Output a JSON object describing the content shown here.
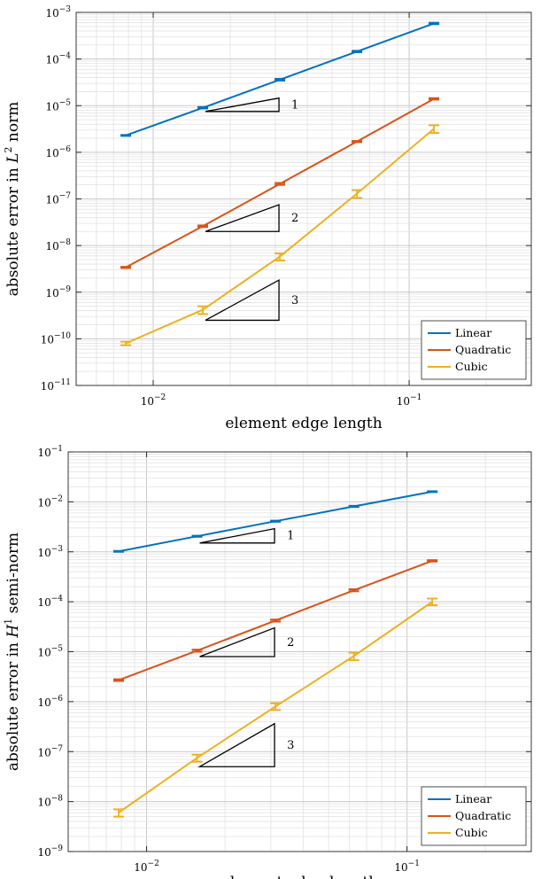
{
  "chart_data": [
    {
      "type": "line",
      "xscale": "log",
      "yscale": "log",
      "xlim": [
        0.005,
        0.3
      ],
      "ylim": [
        1e-11,
        0.001
      ],
      "xlabel": "element edge length",
      "ylabel_prefix": "absolute error in ",
      "ylabel_var": "L",
      "ylabel_sup": "2",
      "ylabel_suffix": " norm",
      "xticks": [
        0.01,
        0.1
      ],
      "xtick_labels": [
        {
          "base": "10",
          "exp": "−2"
        },
        {
          "base": "10",
          "exp": "−1"
        }
      ],
      "yticks": [
        1e-11,
        1e-10,
        1e-09,
        1e-08,
        1e-07,
        1e-06,
        1e-05,
        0.0001,
        0.001
      ],
      "ytick_labels": [
        {
          "base": "10",
          "exp": "−11"
        },
        {
          "base": "10",
          "exp": "−10"
        },
        {
          "base": "10",
          "exp": "−9"
        },
        {
          "base": "10",
          "exp": "−8"
        },
        {
          "base": "10",
          "exp": "−7"
        },
        {
          "base": "10",
          "exp": "−6"
        },
        {
          "base": "10",
          "exp": "−5"
        },
        {
          "base": "10",
          "exp": "−4"
        },
        {
          "base": "10",
          "exp": "−3"
        }
      ],
      "grid": true,
      "legend_position": "bottom-right",
      "series": [
        {
          "name": "Linear",
          "color": "#0072BD",
          "x": [
            0.0078125,
            0.015625,
            0.03125,
            0.0625,
            0.125
          ],
          "y": [
            2.3e-06,
            9e-06,
            3.6e-05,
            0.000145,
            0.00058
          ],
          "err_lo": [
            2.25e-06,
            8.7e-06,
            3.45e-05,
            0.00014,
            0.00056
          ],
          "err_hi": [
            2.35e-06,
            9.3e-06,
            3.75e-05,
            0.00015,
            0.0006
          ]
        },
        {
          "name": "Quadratic",
          "color": "#D95319",
          "x": [
            0.0078125,
            0.015625,
            0.03125,
            0.0625,
            0.125
          ],
          "y": [
            3.4e-09,
            2.6e-08,
            2.1e-07,
            1.7e-06,
            1.4e-05
          ],
          "err_lo": [
            3.3e-09,
            2.5e-08,
            2e-07,
            1.65e-06,
            1.35e-05
          ],
          "err_hi": [
            3.5e-09,
            2.7e-08,
            2.2e-07,
            1.75e-06,
            1.45e-05
          ]
        },
        {
          "name": "Cubic",
          "color": "#EDB120",
          "x": [
            0.0078125,
            0.015625,
            0.03125,
            0.0625,
            0.125
          ],
          "y": [
            8e-11,
            4.2e-10,
            5.8e-09,
            1.3e-07,
            3.2e-06
          ],
          "err_lo": [
            7.3e-11,
            3.4e-10,
            4.8e-09,
            1.05e-07,
            2.6e-06
          ],
          "err_hi": [
            8.7e-11,
            5e-10,
            6.8e-09,
            1.55e-07,
            3.8e-06
          ]
        }
      ],
      "slope_triangles": [
        {
          "label": "1",
          "x1": 0.016,
          "x2": 0.031,
          "y_base": 7.5e-06,
          "slope": 1
        },
        {
          "label": "2",
          "x1": 0.016,
          "x2": 0.031,
          "y_base": 2e-08,
          "slope": 2
        },
        {
          "label": "3",
          "x1": 0.016,
          "x2": 0.031,
          "y_base": 2.5e-10,
          "slope": 3
        }
      ]
    },
    {
      "type": "line",
      "xscale": "log",
      "yscale": "log",
      "xlim": [
        0.005,
        0.3
      ],
      "ylim": [
        1e-09,
        0.1
      ],
      "xlabel": "element edge length",
      "ylabel_prefix": "absolute error in ",
      "ylabel_var": "H",
      "ylabel_sup": "1",
      "ylabel_suffix": " semi-norm",
      "xticks": [
        0.01,
        0.1
      ],
      "xtick_labels": [
        {
          "base": "10",
          "exp": "−2"
        },
        {
          "base": "10",
          "exp": "−1"
        }
      ],
      "yticks": [
        1e-09,
        1e-08,
        1e-07,
        1e-06,
        1e-05,
        0.0001,
        0.001,
        0.01,
        0.1
      ],
      "ytick_labels": [
        {
          "base": "10",
          "exp": "−9"
        },
        {
          "base": "10",
          "exp": "−8"
        },
        {
          "base": "10",
          "exp": "−7"
        },
        {
          "base": "10",
          "exp": "−6"
        },
        {
          "base": "10",
          "exp": "−5"
        },
        {
          "base": "10",
          "exp": "−4"
        },
        {
          "base": "10",
          "exp": "−3"
        },
        {
          "base": "10",
          "exp": "−2"
        },
        {
          "base": "10",
          "exp": "−1"
        }
      ],
      "grid": true,
      "legend_position": "bottom-right",
      "series": [
        {
          "name": "Linear",
          "color": "#0072BD",
          "x": [
            0.0078125,
            0.015625,
            0.03125,
            0.0625,
            0.125
          ],
          "y": [
            0.00102,
            0.00205,
            0.0041,
            0.0081,
            0.016
          ],
          "err_lo": [
            0.001,
            0.002,
            0.004,
            0.0079,
            0.0157
          ],
          "err_hi": [
            0.00104,
            0.0021,
            0.0042,
            0.0083,
            0.0163
          ]
        },
        {
          "name": "Quadratic",
          "color": "#D95319",
          "x": [
            0.0078125,
            0.015625,
            0.03125,
            0.0625,
            0.125
          ],
          "y": [
            2.7e-06,
            1.05e-05,
            4.2e-05,
            0.00017,
            0.00066
          ],
          "err_lo": [
            2.6e-06,
            1e-05,
            4e-05,
            0.000162,
            0.00064
          ],
          "err_hi": [
            2.8e-06,
            1.1e-05,
            4.4e-05,
            0.000178,
            0.00068
          ]
        },
        {
          "name": "Cubic",
          "color": "#EDB120",
          "x": [
            0.0078125,
            0.015625,
            0.03125,
            0.0625,
            0.125
          ],
          "y": [
            6e-09,
            7.5e-08,
            8e-07,
            8.2e-06,
            0.0001
          ],
          "err_lo": [
            5e-09,
            6.3e-08,
            6.8e-07,
            6.8e-06,
            8.5e-05
          ],
          "err_hi": [
            7e-09,
            8.7e-08,
            9.3e-07,
            9.6e-06,
            0.000116
          ]
        }
      ],
      "slope_triangles": [
        {
          "label": "1",
          "x1": 0.016,
          "x2": 0.031,
          "y_base": 0.0015,
          "slope": 1
        },
        {
          "label": "2",
          "x1": 0.016,
          "x2": 0.031,
          "y_base": 8e-06,
          "slope": 2
        },
        {
          "label": "3",
          "x1": 0.016,
          "x2": 0.031,
          "y_base": 5e-08,
          "slope": 3
        }
      ]
    }
  ]
}
